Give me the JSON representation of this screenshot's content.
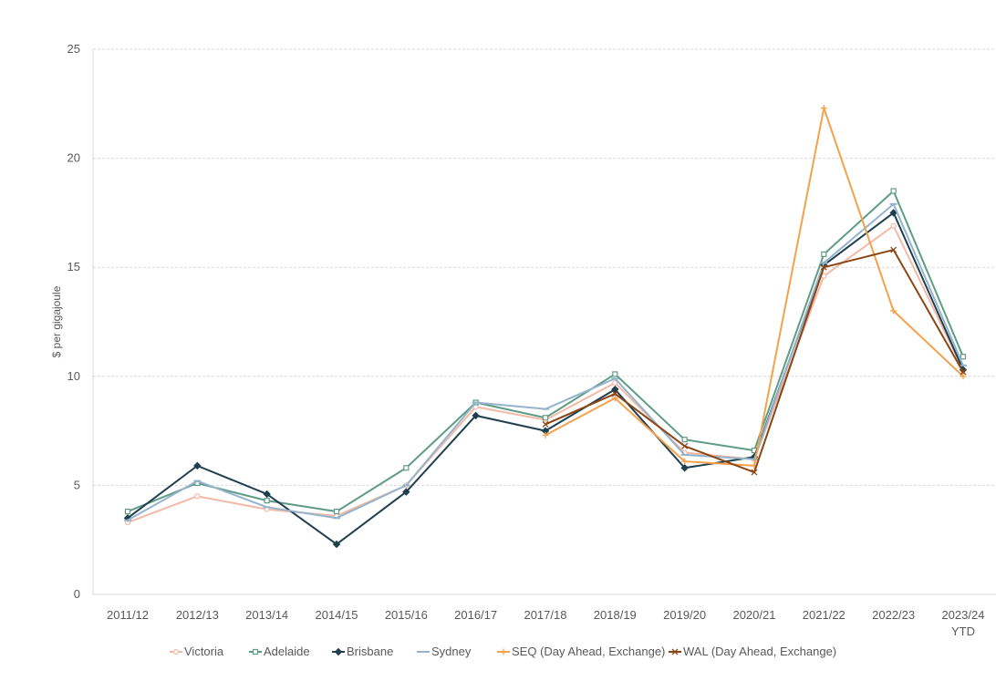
{
  "chart_data": {
    "type": "line",
    "title": "",
    "xlabel": "",
    "ylabel": "$ per gigajoule",
    "ylim": [
      0,
      25
    ],
    "yticks": [
      "0",
      "5",
      "10",
      "15",
      "20",
      "25"
    ],
    "categories": [
      "2011/12",
      "2012/13",
      "2013/14",
      "2014/15",
      "2015/16",
      "2016/17",
      "2017/18",
      "2018/19",
      "2019/20",
      "2020/21",
      "2021/22",
      "2022/23",
      "2023/24"
    ],
    "category_sublabels": [
      "",
      "",
      "",
      "",
      "",
      "",
      "",
      "",
      "",
      "",
      "",
      "",
      "YTD"
    ],
    "grid": "horizontal",
    "legend_position": "bottom",
    "series": [
      {
        "name": "Victoria",
        "color": "#F4B9A6",
        "marker": "circle",
        "values": [
          3.3,
          4.5,
          3.9,
          3.6,
          5.0,
          8.6,
          8.0,
          9.7,
          6.5,
          6.2,
          14.6,
          16.9,
          10.3
        ]
      },
      {
        "name": "Adelaide",
        "color": "#5E9C84",
        "marker": "square",
        "values": [
          3.8,
          5.1,
          4.3,
          3.8,
          5.8,
          8.8,
          8.1,
          10.1,
          7.1,
          6.6,
          15.6,
          18.5,
          10.9
        ]
      },
      {
        "name": "Brisbane",
        "color": "#1E3F4F",
        "marker": "diamond",
        "values": [
          3.5,
          5.9,
          4.6,
          2.3,
          4.7,
          8.2,
          7.5,
          9.4,
          5.8,
          6.3,
          15.1,
          17.5,
          10.3
        ]
      },
      {
        "name": "Sydney",
        "color": "#94B4CD",
        "marker": "dash",
        "values": [
          3.4,
          5.2,
          4.0,
          3.5,
          5.0,
          8.8,
          8.5,
          9.9,
          6.4,
          6.2,
          15.2,
          17.9,
          10.5
        ]
      },
      {
        "name": "SEQ (Day Ahead, Exchange)",
        "color": "#F4A14C",
        "marker": "plus",
        "values": [
          null,
          null,
          null,
          null,
          null,
          null,
          7.3,
          9.0,
          6.1,
          5.9,
          22.3,
          13.0,
          10.0
        ]
      },
      {
        "name": "WAL (Day Ahead, Exchange)",
        "color": "#8B4513",
        "marker": "x",
        "values": [
          null,
          null,
          null,
          null,
          null,
          null,
          7.8,
          9.2,
          6.8,
          5.6,
          15.0,
          15.8,
          10.2
        ]
      }
    ]
  }
}
